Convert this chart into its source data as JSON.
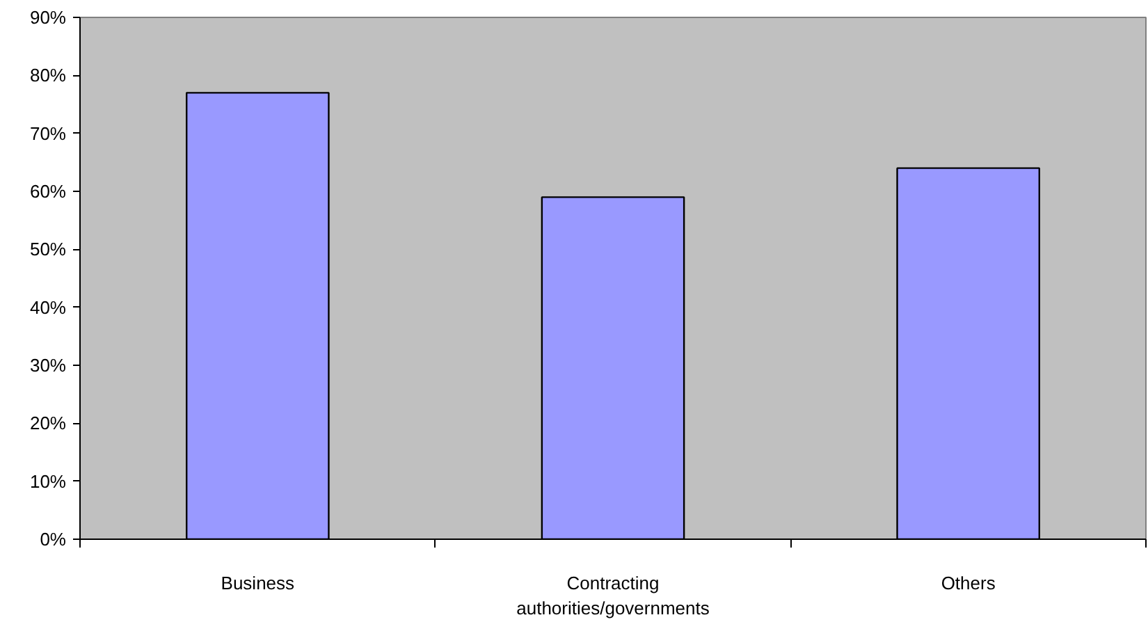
{
  "chart_data": {
    "type": "bar",
    "categories": [
      "Business",
      "Contracting authorities/governments",
      "Others"
    ],
    "values": [
      77,
      59,
      64
    ],
    "color": "#9999ff",
    "ylim": [
      0,
      90
    ],
    "yticks": [
      {
        "value": 0,
        "label": "0%"
      },
      {
        "value": 10,
        "label": "10%"
      },
      {
        "value": 20,
        "label": "20%"
      },
      {
        "value": 30,
        "label": "30%"
      },
      {
        "value": 40,
        "label": "40%"
      },
      {
        "value": 50,
        "label": "50%"
      },
      {
        "value": 60,
        "label": "60%"
      },
      {
        "value": 70,
        "label": "70%"
      },
      {
        "value": 80,
        "label": "80%"
      },
      {
        "value": 90,
        "label": "90%"
      }
    ],
    "grid": false
  }
}
